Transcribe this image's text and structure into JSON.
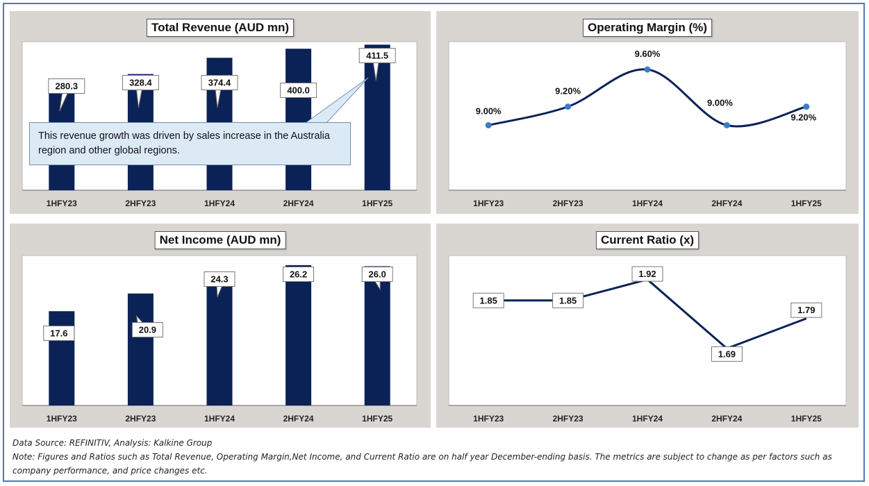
{
  "colors": {
    "bar": "#0b2257",
    "line": "#0b2257",
    "marker": "#3d7bc8",
    "panel_bg": "#d9d6d2",
    "plot_bg": "#ffffff",
    "border": "#4a7ab5",
    "callout_bg": "#dceaf6"
  },
  "chart_data": [
    {
      "type": "bar",
      "title": "Total Revenue (AUD mn)",
      "categories": [
        "1HFY23",
        "2HFY23",
        "1HFY24",
        "2HFY24",
        "1HFY25"
      ],
      "values": [
        280.3,
        328.4,
        374.4,
        400.0,
        411.5
      ],
      "labels": [
        "280.3",
        "328.4",
        "374.4",
        "400.0",
        "411.5"
      ],
      "ylim": [
        0,
        420
      ],
      "annotation": "This revenue growth was driven by sales increase in the Australia region and other global regions.",
      "grid": false
    },
    {
      "type": "line",
      "title": "Operating Margin (%)",
      "categories": [
        "1HFY23",
        "2HFY23",
        "1HFY24",
        "2HFY24",
        "1HFY25"
      ],
      "values": [
        9.0,
        9.2,
        9.6,
        9.0,
        9.2
      ],
      "labels": [
        "9.00%",
        "9.20%",
        "9.60%",
        "9.00%",
        "9.20%"
      ],
      "ylim": [
        8.3,
        9.9
      ],
      "smooth": true,
      "grid": false
    },
    {
      "type": "bar",
      "title": "Net Income (AUD mn)",
      "categories": [
        "1HFY23",
        "2HFY23",
        "1HFY24",
        "2HFY24",
        "1HFY25"
      ],
      "values": [
        17.6,
        20.9,
        24.3,
        26.2,
        26.0
      ],
      "labels": [
        "17.6",
        "20.9",
        "24.3",
        "26.2",
        "26.0"
      ],
      "ylim": [
        0,
        28
      ],
      "grid": false
    },
    {
      "type": "line",
      "title": "Current Ratio (x)",
      "categories": [
        "1HFY23",
        "2HFY23",
        "1HFY24",
        "2HFY24",
        "1HFY25"
      ],
      "values": [
        1.85,
        1.85,
        1.92,
        1.69,
        1.79
      ],
      "labels": [
        "1.85",
        "1.85",
        "1.92",
        "1.69",
        "1.79"
      ],
      "ylim": [
        1.5,
        2.0
      ],
      "smooth": false,
      "grid": false
    }
  ],
  "footer": {
    "source": "Data Source: REFINITIV, Analysis: Kalkine Group",
    "note": "Note: Figures and Ratios such as Total Revenue, Operating Margin,Net Income, and Current Ratio are on half year December-ending basis. The metrics are subject to change as per factors such as company performance, and price changes etc."
  }
}
